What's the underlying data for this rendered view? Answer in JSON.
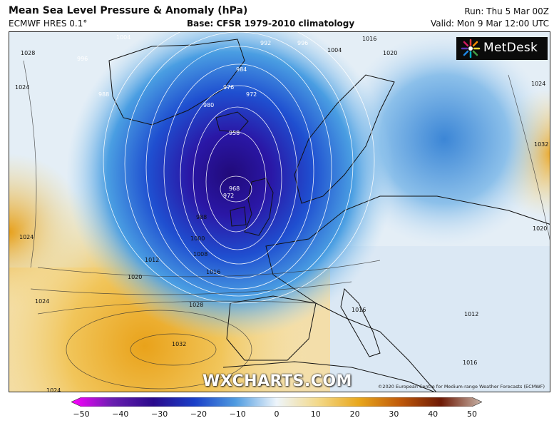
{
  "header": {
    "title": "Mean Sea Level Pressure & Anomaly (hPa)",
    "model": "ECMWF HRES 0.1°",
    "base": "Base: CFSR 1979-2010 climatology",
    "run": "Run: Thu 5 Mar 00Z",
    "valid": "Valid: Mon 9 Mar 12:00 UTC"
  },
  "logo": {
    "text": "MetDesk",
    "icon": "metdesk-sunburst-icon"
  },
  "watermark": "WXCHARTS.COM",
  "copyright": "©2020 European Centre for Medium-range Weather Forecasts (ECMWF)",
  "colorbar": {
    "ticks": [
      "−50",
      "−40",
      "−30",
      "−20",
      "−10",
      "0",
      "10",
      "20",
      "30",
      "40",
      "50"
    ],
    "range": [
      -50,
      50
    ],
    "colors": [
      "#ff00ff",
      "#6a1fb0",
      "#2a0a8c",
      "#1a3fc8",
      "#4f9be0",
      "#eef5fb",
      "#f3d98a",
      "#e8a71c",
      "#c05a0a",
      "#6e1a05",
      "#c8b4a8"
    ]
  },
  "map": {
    "isobars": [
      "958",
      "968",
      "972",
      "972",
      "976",
      "980",
      "984",
      "988",
      "988",
      "992",
      "996",
      "996",
      "1000",
      "1004",
      "1004",
      "1008",
      "1012",
      "1012",
      "1016",
      "1016",
      "1016",
      "1016",
      "1020",
      "1020",
      "1020",
      "1024",
      "1024",
      "1024",
      "1024",
      "1024",
      "1028",
      "1028",
      "1032",
      "1032"
    ]
  }
}
